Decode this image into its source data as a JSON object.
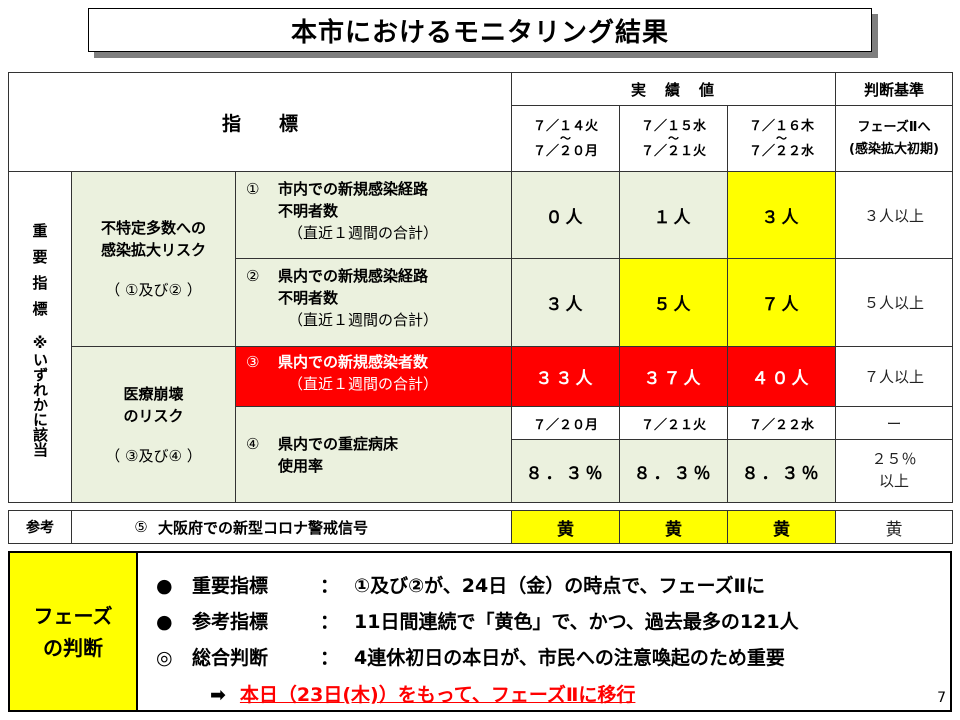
{
  "title": "本市におけるモニタリング結果",
  "header": {
    "indicator": "指　　標",
    "actual": "実　績　値",
    "criteria": "判断基準",
    "periods": [
      {
        "from": "７／１４火",
        "to": "７／２０月"
      },
      {
        "from": "７／１５水",
        "to": "７／２１火"
      },
      {
        "from": "７／１６木",
        "to": "７／２２水"
      }
    ],
    "tilde": "～",
    "phase_label_1": "フェーズⅡへ",
    "phase_label_2": "(感染拡大初期)"
  },
  "side_label": [
    "重",
    "要",
    "指",
    "標",
    "※いずれかに該当"
  ],
  "categories": [
    {
      "line1": "不特定多数への",
      "line2": "感染拡大リスク",
      "line3": "（ ①及び② ）"
    },
    {
      "line1": "医療崩壊",
      "line2": "のリスク",
      "line3": "（ ③及び④ ）"
    }
  ],
  "rows": [
    {
      "num": "①",
      "line1": "市内での新規感染経路",
      "line2": "不明者数",
      "sub": "（直近１週間の合計）",
      "values": [
        "０人",
        "１人",
        "３人"
      ],
      "criteria": "３人以上",
      "colors": [
        "green",
        "green",
        "yellow"
      ]
    },
    {
      "num": "②",
      "line1": "県内での新規感染経路",
      "line2": "不明者数",
      "sub": "（直近１週間の合計）",
      "values": [
        "３人",
        "５人",
        "７人"
      ],
      "criteria": "５人以上",
      "colors": [
        "green",
        "yellow",
        "yellow"
      ]
    },
    {
      "num": "③",
      "line1": "県内での新規感染者数",
      "sub": "（直近１週間の合計）",
      "values": [
        "３３人",
        "３７人",
        "４０人"
      ],
      "criteria": "７人以上",
      "colors": [
        "red",
        "red",
        "red"
      ]
    },
    {
      "num": "④",
      "line1": "県内での重症病床",
      "line2": "使用率",
      "dates": [
        "７／２０月",
        "７／２１火",
        "７／２２水"
      ],
      "dash": "ー",
      "values": [
        "８．３％",
        "８．３％",
        "８．３％"
      ],
      "criteria_1": "２５％",
      "criteria_2": "以上",
      "colors": [
        "green",
        "green",
        "green"
      ]
    }
  ],
  "reference": {
    "label": "参考",
    "num": "⑤",
    "text": "大阪府での新型コロナ警戒信号",
    "values": [
      "黄",
      "黄",
      "黄"
    ],
    "criteria": "黄"
  },
  "phase": {
    "label_1": "フェーズ",
    "label_2": "の判断",
    "items": [
      {
        "mark": "●",
        "label": "重要指標",
        "text": "①及び②が、24日（金）の時点で、フェーズⅡに"
      },
      {
        "mark": "●",
        "label": "参考指標",
        "text": "11日間連続で「黄色」で、かつ、過去最多の121人"
      },
      {
        "mark": "◎",
        "label": "総合判断",
        "text": "4連休初日の本日が、市民への注意喚起のため重要"
      }
    ],
    "colon": "：",
    "arrow": "➡",
    "conclusion": "本日（23日(木)）をもって、フェーズⅡに移行"
  },
  "page_number": "7",
  "colors": {
    "green": "#ebf1de",
    "yellow": "#ffff00",
    "red": "#ff0000"
  }
}
